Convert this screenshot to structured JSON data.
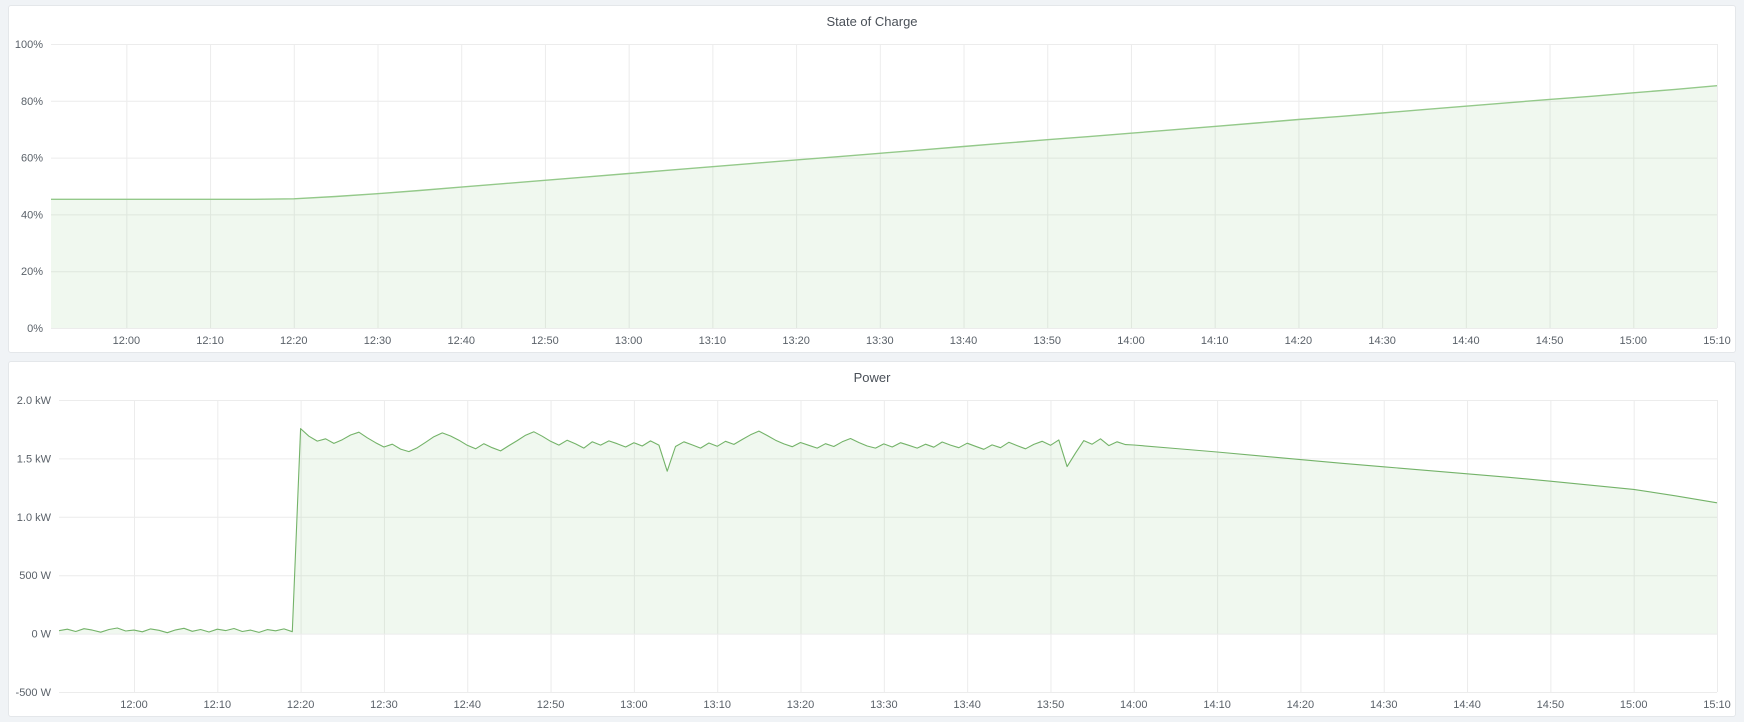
{
  "page": {
    "background_color": "#f0f3f6",
    "panel_border_color": "#e4e7ea"
  },
  "panels": [
    {
      "title": "State of Charge"
    },
    {
      "title": "Power"
    }
  ],
  "chart_data": [
    {
      "type": "area",
      "title": "State of Charge",
      "xlabel": "",
      "ylabel": "",
      "unit": "%",
      "grid": true,
      "legend_position": "none",
      "xlim_minutes": [
        711,
        910
      ],
      "ylim": [
        0,
        100
      ],
      "fill_to": 0,
      "y_ticks": [
        {
          "v": 0,
          "label": "0%"
        },
        {
          "v": 20,
          "label": "20%"
        },
        {
          "v": 40,
          "label": "40%"
        },
        {
          "v": 60,
          "label": "60%"
        },
        {
          "v": 80,
          "label": "80%"
        },
        {
          "v": 100,
          "label": "100%"
        }
      ],
      "x_ticks": [
        {
          "t": 720,
          "label": "12:00"
        },
        {
          "t": 730,
          "label": "12:10"
        },
        {
          "t": 740,
          "label": "12:20"
        },
        {
          "t": 750,
          "label": "12:30"
        },
        {
          "t": 760,
          "label": "12:40"
        },
        {
          "t": 770,
          "label": "12:50"
        },
        {
          "t": 780,
          "label": "13:00"
        },
        {
          "t": 790,
          "label": "13:10"
        },
        {
          "t": 800,
          "label": "13:20"
        },
        {
          "t": 810,
          "label": "13:30"
        },
        {
          "t": 820,
          "label": "13:40"
        },
        {
          "t": 830,
          "label": "13:50"
        },
        {
          "t": 840,
          "label": "14:00"
        },
        {
          "t": 850,
          "label": "14:10"
        },
        {
          "t": 860,
          "label": "14:20"
        },
        {
          "t": 870,
          "label": "14:30"
        },
        {
          "t": 880,
          "label": "14:40"
        },
        {
          "t": 890,
          "label": "14:50"
        },
        {
          "t": 900,
          "label": "15:00"
        },
        {
          "t": 910,
          "label": "15:10"
        }
      ],
      "series": [
        {
          "name": "State of Charge",
          "line_color": "#94c98a",
          "fill_color": "rgba(115,191,105,0.11)",
          "line_width": 1.4,
          "points": [
            [
              711,
              45.3
            ],
            [
              715,
              45.3
            ],
            [
              720,
              45.3
            ],
            [
              725,
              45.3
            ],
            [
              730,
              45.3
            ],
            [
              735,
              45.3
            ],
            [
              740,
              45.5
            ],
            [
              745,
              46.3
            ],
            [
              750,
              47.3
            ],
            [
              755,
              48.4
            ],
            [
              760,
              49.6
            ],
            [
              765,
              50.8
            ],
            [
              770,
              52.0
            ],
            [
              775,
              53.2
            ],
            [
              780,
              54.4
            ],
            [
              785,
              55.6
            ],
            [
              790,
              56.8
            ],
            [
              795,
              58.0
            ],
            [
              800,
              59.2
            ],
            [
              805,
              60.3
            ],
            [
              810,
              61.5
            ],
            [
              815,
              62.7
            ],
            [
              820,
              63.9
            ],
            [
              825,
              65.1
            ],
            [
              830,
              66.3
            ],
            [
              835,
              67.4
            ],
            [
              840,
              68.6
            ],
            [
              845,
              69.8
            ],
            [
              850,
              71.0
            ],
            [
              855,
              72.2
            ],
            [
              860,
              73.4
            ],
            [
              865,
              74.5
            ],
            [
              870,
              75.7
            ],
            [
              875,
              76.9
            ],
            [
              880,
              78.1
            ],
            [
              885,
              79.3
            ],
            [
              890,
              80.5
            ],
            [
              895,
              81.6
            ],
            [
              900,
              82.8
            ],
            [
              905,
              84.0
            ],
            [
              910,
              85.3
            ]
          ]
        }
      ]
    },
    {
      "type": "area",
      "title": "Power",
      "xlabel": "",
      "ylabel": "",
      "unit": "W",
      "grid": true,
      "legend_position": "none",
      "xlim_minutes": [
        711,
        910
      ],
      "ylim": [
        -500,
        2000
      ],
      "fill_to": 0,
      "y_ticks": [
        {
          "v": -500,
          "label": "-500 W"
        },
        {
          "v": 0,
          "label": "0 W"
        },
        {
          "v": 500,
          "label": "500 W"
        },
        {
          "v": 1000,
          "label": "1.0 kW"
        },
        {
          "v": 1500,
          "label": "1.5 kW"
        },
        {
          "v": 2000,
          "label": "2.0 kW"
        }
      ],
      "x_ticks": [
        {
          "t": 720,
          "label": "12:00"
        },
        {
          "t": 730,
          "label": "12:10"
        },
        {
          "t": 740,
          "label": "12:20"
        },
        {
          "t": 750,
          "label": "12:30"
        },
        {
          "t": 760,
          "label": "12:40"
        },
        {
          "t": 770,
          "label": "12:50"
        },
        {
          "t": 780,
          "label": "13:00"
        },
        {
          "t": 790,
          "label": "13:10"
        },
        {
          "t": 800,
          "label": "13:20"
        },
        {
          "t": 810,
          "label": "13:30"
        },
        {
          "t": 820,
          "label": "13:40"
        },
        {
          "t": 830,
          "label": "13:50"
        },
        {
          "t": 840,
          "label": "14:00"
        },
        {
          "t": 850,
          "label": "14:10"
        },
        {
          "t": 860,
          "label": "14:20"
        },
        {
          "t": 870,
          "label": "14:30"
        },
        {
          "t": 880,
          "label": "14:40"
        },
        {
          "t": 890,
          "label": "14:50"
        },
        {
          "t": 900,
          "label": "15:00"
        },
        {
          "t": 910,
          "label": "15:10"
        }
      ],
      "series": [
        {
          "name": "Power",
          "line_color": "#74b369",
          "fill_color": "rgba(115,191,105,0.11)",
          "line_width": 1.1,
          "points": [
            [
              711,
              25
            ],
            [
              712,
              38
            ],
            [
              713,
              18
            ],
            [
              714,
              42
            ],
            [
              715,
              30
            ],
            [
              716,
              12
            ],
            [
              717,
              35
            ],
            [
              718,
              48
            ],
            [
              719,
              22
            ],
            [
              720,
              30
            ],
            [
              721,
              15
            ],
            [
              722,
              40
            ],
            [
              723,
              28
            ],
            [
              724,
              8
            ],
            [
              725,
              32
            ],
            [
              726,
              45
            ],
            [
              727,
              20
            ],
            [
              728,
              35
            ],
            [
              729,
              14
            ],
            [
              730,
              38
            ],
            [
              731,
              26
            ],
            [
              732,
              44
            ],
            [
              733,
              18
            ],
            [
              734,
              30
            ],
            [
              735,
              10
            ],
            [
              736,
              34
            ],
            [
              737,
              24
            ],
            [
              738,
              40
            ],
            [
              739,
              16
            ],
            [
              740,
              1755
            ],
            [
              741,
              1690
            ],
            [
              742,
              1648
            ],
            [
              743,
              1668
            ],
            [
              744,
              1628
            ],
            [
              745,
              1660
            ],
            [
              746,
              1700
            ],
            [
              747,
              1724
            ],
            [
              748,
              1676
            ],
            [
              749,
              1634
            ],
            [
              750,
              1598
            ],
            [
              751,
              1622
            ],
            [
              752,
              1580
            ],
            [
              753,
              1558
            ],
            [
              754,
              1592
            ],
            [
              755,
              1638
            ],
            [
              756,
              1686
            ],
            [
              757,
              1718
            ],
            [
              758,
              1692
            ],
            [
              759,
              1656
            ],
            [
              760,
              1612
            ],
            [
              761,
              1582
            ],
            [
              762,
              1626
            ],
            [
              763,
              1592
            ],
            [
              764,
              1564
            ],
            [
              765,
              1610
            ],
            [
              766,
              1652
            ],
            [
              767,
              1699
            ],
            [
              768,
              1728
            ],
            [
              769,
              1690
            ],
            [
              770,
              1646
            ],
            [
              771,
              1614
            ],
            [
              772,
              1656
            ],
            [
              773,
              1624
            ],
            [
              774,
              1588
            ],
            [
              775,
              1642
            ],
            [
              776,
              1614
            ],
            [
              777,
              1650
            ],
            [
              778,
              1626
            ],
            [
              779,
              1598
            ],
            [
              780,
              1634
            ],
            [
              781,
              1606
            ],
            [
              782,
              1650
            ],
            [
              783,
              1614
            ],
            [
              784,
              1390
            ],
            [
              785,
              1602
            ],
            [
              786,
              1642
            ],
            [
              787,
              1616
            ],
            [
              788,
              1588
            ],
            [
              789,
              1632
            ],
            [
              790,
              1604
            ],
            [
              791,
              1646
            ],
            [
              792,
              1620
            ],
            [
              793,
              1662
            ],
            [
              794,
              1702
            ],
            [
              795,
              1734
            ],
            [
              796,
              1696
            ],
            [
              797,
              1656
            ],
            [
              798,
              1624
            ],
            [
              799,
              1600
            ],
            [
              800,
              1636
            ],
            [
              801,
              1612
            ],
            [
              802,
              1588
            ],
            [
              803,
              1626
            ],
            [
              804,
              1602
            ],
            [
              805,
              1642
            ],
            [
              806,
              1670
            ],
            [
              807,
              1636
            ],
            [
              808,
              1606
            ],
            [
              809,
              1588
            ],
            [
              810,
              1624
            ],
            [
              811,
              1598
            ],
            [
              812,
              1634
            ],
            [
              813,
              1612
            ],
            [
              814,
              1588
            ],
            [
              815,
              1622
            ],
            [
              816,
              1596
            ],
            [
              817,
              1640
            ],
            [
              818,
              1614
            ],
            [
              819,
              1592
            ],
            [
              820,
              1630
            ],
            [
              821,
              1604
            ],
            [
              822,
              1578
            ],
            [
              823,
              1616
            ],
            [
              824,
              1592
            ],
            [
              825,
              1638
            ],
            [
              826,
              1610
            ],
            [
              827,
              1582
            ],
            [
              828,
              1620
            ],
            [
              829,
              1646
            ],
            [
              830,
              1612
            ],
            [
              831,
              1658
            ],
            [
              832,
              1430
            ],
            [
              833,
              1545
            ],
            [
              834,
              1652
            ],
            [
              835,
              1622
            ],
            [
              836,
              1668
            ],
            [
              837,
              1610
            ],
            [
              838,
              1642
            ],
            [
              839,
              1618
            ],
            [
              840,
              1615
            ],
            [
              845,
              1585
            ],
            [
              850,
              1555
            ],
            [
              855,
              1522
            ],
            [
              860,
              1490
            ],
            [
              865,
              1458
            ],
            [
              870,
              1428
            ],
            [
              875,
              1398
            ],
            [
              880,
              1368
            ],
            [
              885,
              1338
            ],
            [
              890,
              1305
            ],
            [
              895,
              1270
            ],
            [
              900,
              1235
            ],
            [
              905,
              1180
            ],
            [
              910,
              1120
            ]
          ]
        }
      ]
    }
  ]
}
